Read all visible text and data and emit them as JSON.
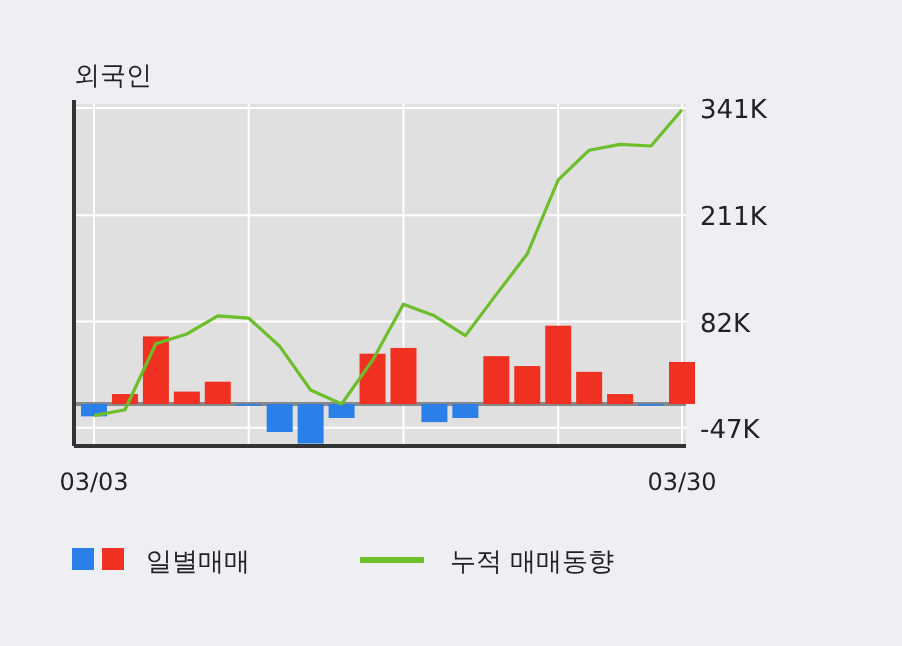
{
  "chart_data": {
    "type": "bar",
    "title": "외국인",
    "categories": [
      "03/03",
      null,
      null,
      null,
      null,
      null,
      null,
      null,
      null,
      null,
      null,
      null,
      null,
      null,
      null,
      null,
      null,
      null,
      null,
      "03/30"
    ],
    "ylim": [
      -69,
      346
    ],
    "yticks": [
      {
        "value": -47,
        "label": "-47K"
      },
      {
        "value": 82,
        "label": "82K"
      },
      {
        "value": 211,
        "label": "211K"
      },
      {
        "value": 341,
        "label": "341K"
      }
    ],
    "grid": true,
    "legend": "bottom",
    "ref_lines": [
      {
        "axis": "y",
        "value": -18,
        "color": "#888888"
      }
    ],
    "series": [
      {
        "name": "일별매매",
        "colors": [
          "#2b7fe8",
          "#f03020",
          "#f03020",
          "#f03020",
          "#f03020",
          "#2b7fe8",
          "#2b7fe8",
          "#2b7fe8",
          "#2b7fe8",
          "#f03020",
          "#f03020",
          "#2b7fe8",
          "#2b7fe8",
          "#f03020",
          "#f03020",
          "#f03020",
          "#f03020",
          "#f03020",
          "#2b7fe8",
          "#f03020"
        ],
        "base": [
          -18,
          -18,
          -18,
          -18,
          -18,
          -18,
          -18,
          -18,
          -18,
          -18,
          -18,
          -18,
          -18,
          -18,
          -18,
          -18,
          -18,
          -18,
          -18,
          -18
        ],
        "values": [
          -15,
          12,
          82,
          15,
          27,
          -2,
          -34,
          -48,
          -17,
          61,
          68,
          -22,
          -17,
          58,
          46,
          95,
          39,
          12,
          -2,
          51
        ]
      },
      {
        "name": "누적 매매동향",
        "type": "line",
        "color": "#6cbf2a",
        "values": [
          -32,
          -25,
          55,
          67,
          89,
          86,
          52,
          -1,
          -18,
          35,
          103,
          89,
          65,
          115,
          164,
          254,
          290,
          297,
          295,
          339
        ]
      }
    ]
  }
}
